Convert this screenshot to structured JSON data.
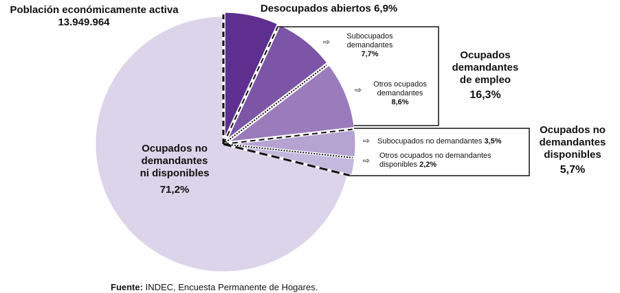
{
  "chart_data": {
    "type": "pie",
    "title": "Población económicamente activa",
    "total": "13.949.964",
    "source_label": "Fuente:",
    "source_text": "INDEC, Encuesta Permanente de Hogares.",
    "slices": [
      {
        "name": "Desocupados abiertos",
        "value": 6.9,
        "label": "6,9%",
        "color": "#5e2f8f"
      },
      {
        "name": "Subocupados demandantes",
        "value": 7.7,
        "label": "7,7%",
        "color": "#7c55a6"
      },
      {
        "name": "Otros ocupados demandantes",
        "value": 8.6,
        "label": "8,6%",
        "color": "#9a7cbc"
      },
      {
        "name": "Subocupados no demandantes",
        "value": 3.5,
        "label": "3,5%",
        "color": "#b5a3d2"
      },
      {
        "name": "Otros ocupados no demandantes disponibles",
        "value": 2.2,
        "label": "2,2%",
        "color": "#c5b8de"
      },
      {
        "name": "Ocupados no demandantes ni disponibles",
        "value": 71.2,
        "label": "71,2%",
        "color": "#dcd4ea"
      }
    ],
    "groups": [
      {
        "name": "Ocupados demandantes de empleo",
        "label": "16,3%"
      },
      {
        "name": "Ocupados no demandantes disponibles",
        "label": "5,7%"
      }
    ]
  },
  "labels": {
    "desocupados": "Desocupados abiertos",
    "desocupados_pct": "6,9%",
    "suboc_dem_1": "Subocupados",
    "suboc_dem_2": "demandantes",
    "suboc_dem_pct": "7,7%",
    "otros_dem_1": "Otros ocupados",
    "otros_dem_2": "demandantes",
    "otros_dem_pct": "8,6%",
    "suboc_nodem": "Subocupados no demandantes",
    "suboc_nodem_pct": "3,5%",
    "otros_nodem_1": "Otros ocupados no demandantes",
    "otros_nodem_2": "disponibles",
    "otros_nodem_pct": "2,2%",
    "grp1_1": "Ocupados",
    "grp1_2": "demandantes",
    "grp1_3": "de empleo",
    "grp1_pct": "16,3%",
    "grp2_1": "Ocupados no",
    "grp2_2": "demandantes",
    "grp2_3": "disponibles",
    "grp2_pct": "5,7%",
    "main_1": "Ocupados no",
    "main_2": "demandantes",
    "main_3": "ni disponibles",
    "main_pct": "71,2%",
    "arrow": "⇨"
  }
}
